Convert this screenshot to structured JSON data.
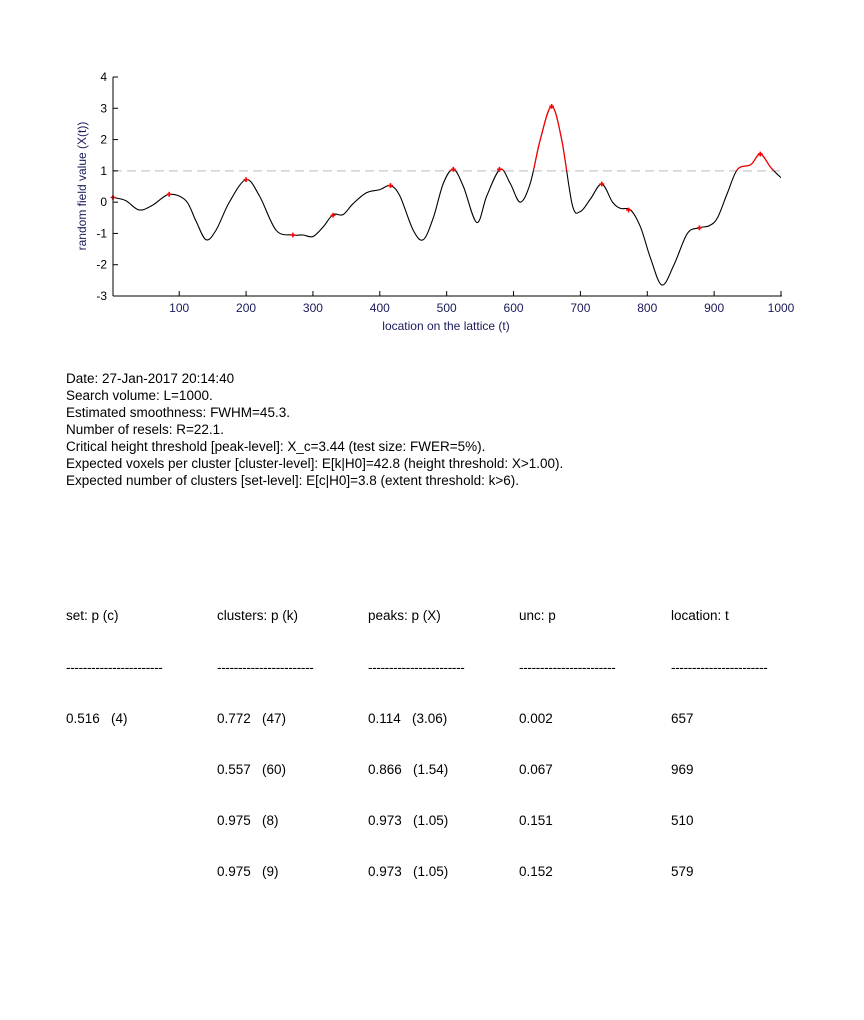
{
  "chart_data": {
    "type": "line",
    "xlabel": "location on the lattice (t)",
    "ylabel": "random field value (X(t))",
    "xlim": [
      1,
      1000
    ],
    "ylim": [
      -3,
      4
    ],
    "xticks": [
      "100",
      "200",
      "300",
      "400",
      "500",
      "600",
      "700",
      "800",
      "900",
      "1000"
    ],
    "yticks": [
      "-3",
      "-2",
      "-1",
      "0",
      "1",
      "2",
      "3",
      "4"
    ],
    "threshold": 1.0,
    "colors": {
      "line": "#000000",
      "above_threshold": "#ff0000",
      "peaks": "#ff0000",
      "threshold_line": "#c8c8c8"
    },
    "series": [
      {
        "x": [
          1,
          20,
          40,
          60,
          85,
          110,
          125,
          140,
          155,
          175,
          200,
          220,
          245,
          270,
          285,
          300,
          315,
          330,
          345,
          360,
          380,
          400,
          416,
          430,
          450,
          465,
          480,
          495,
          510,
          525,
          545,
          560,
          580,
          595,
          610,
          625,
          640,
          657,
          672,
          688,
          700,
          715,
          732,
          748,
          760,
          775,
          790,
          805,
          822,
          840,
          860,
          878,
          893,
          905,
          920,
          935,
          955,
          969,
          985,
          1000
        ],
        "y": [
          0.15,
          0.05,
          -0.25,
          -0.1,
          0.25,
          0.05,
          -0.6,
          -1.2,
          -0.9,
          0.0,
          0.72,
          0.2,
          -0.9,
          -1.05,
          -1.05,
          -1.1,
          -0.8,
          -0.4,
          -0.4,
          -0.05,
          0.3,
          0.4,
          0.53,
          0.2,
          -0.9,
          -1.2,
          -0.5,
          0.6,
          1.05,
          0.5,
          -0.65,
          0.2,
          1.05,
          0.6,
          0.0,
          0.6,
          2.0,
          3.06,
          2.0,
          -0.1,
          -0.3,
          0.1,
          0.58,
          0.0,
          -0.2,
          -0.25,
          -0.8,
          -1.8,
          -2.65,
          -2.0,
          -1.0,
          -0.82,
          -0.75,
          -0.5,
          0.3,
          1.05,
          1.2,
          1.54,
          1.1,
          0.78
        ]
      }
    ],
    "peaks": {
      "x": [
        1,
        85,
        200,
        270,
        330,
        416,
        510,
        579,
        657,
        732,
        772,
        878,
        969
      ],
      "y": [
        0.15,
        0.25,
        0.72,
        -1.05,
        -0.42,
        0.53,
        1.05,
        1.05,
        3.06,
        0.58,
        -0.25,
        -0.82,
        1.54
      ]
    }
  },
  "info": {
    "date": "Date: 27-Jan-2017 20:14:40",
    "search_volume": "Search volume: L=1000.",
    "smoothness": "Estimated smoothness: FWHM=45.3.",
    "resels": "Number of resels: R=22.1.",
    "critical_height": "Critical height threshold [peak-level]: X_c=3.44 (test size: FWER=5%).",
    "expected_voxels": "Expected voxels per cluster [cluster-level]: E[k|H0]=42.8 (height threshold: X>1.00).",
    "expected_clusters": "Expected number of clusters [set-level]: E[c|H0]=3.8 (extent threshold: k>6)."
  },
  "table": {
    "headers": [
      "set: p (c)",
      "clusters: p (k)",
      "peaks: p (X)",
      "unc: p",
      "location: t"
    ],
    "dash": "-----------------------",
    "set_col": [
      "0.516   (4)"
    ],
    "clusters_col": [
      "0.772   (47)",
      "0.557   (60)",
      "0.975   (8)",
      "0.975   (9)"
    ],
    "peaks_col": [
      "0.114   (3.06)",
      "0.866   (1.54)",
      "0.973   (1.05)",
      "0.973   (1.05)"
    ],
    "unc_col": [
      "0.002",
      "0.067",
      "0.151",
      "0.152"
    ],
    "location_col": [
      "657",
      "969",
      "510",
      "579"
    ]
  }
}
